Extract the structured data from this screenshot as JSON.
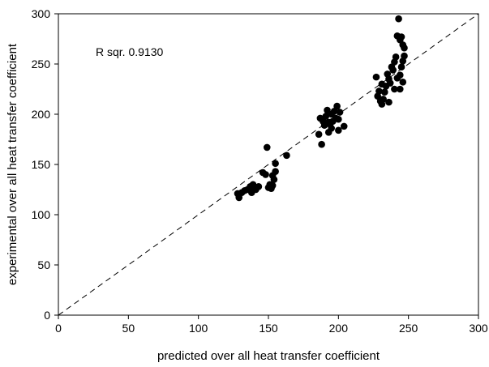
{
  "chart_data": {
    "type": "scatter",
    "xlabel": "predicted over all heat transfer coefficient",
    "ylabel": "experimental over all heat transfer coefficient",
    "annotation": "R sqr. 0.9130",
    "xlim": [
      0,
      300
    ],
    "ylim": [
      0,
      300
    ],
    "xticks": [
      "0",
      "50",
      "100",
      "150",
      "200",
      "250",
      "300"
    ],
    "yticks": [
      "0",
      "50",
      "100",
      "150",
      "200",
      "250",
      "300"
    ],
    "reference_line": "y = x (dashed)",
    "grid": false,
    "marker_color": "#000000",
    "points": [
      [
        128,
        121
      ],
      [
        129,
        117
      ],
      [
        131,
        122
      ],
      [
        133,
        124
      ],
      [
        135,
        125
      ],
      [
        137,
        128
      ],
      [
        138,
        122
      ],
      [
        139,
        130
      ],
      [
        140,
        126
      ],
      [
        141,
        125
      ],
      [
        143,
        128
      ],
      [
        146,
        142
      ],
      [
        148,
        140
      ],
      [
        149,
        167
      ],
      [
        150,
        127
      ],
      [
        151,
        130
      ],
      [
        152,
        126
      ],
      [
        153,
        139
      ],
      [
        153,
        129
      ],
      [
        154,
        135
      ],
      [
        155,
        143
      ],
      [
        155,
        151
      ],
      [
        163,
        159
      ],
      [
        186,
        180
      ],
      [
        187,
        196
      ],
      [
        188,
        170
      ],
      [
        189,
        193
      ],
      [
        190,
        189
      ],
      [
        191,
        198
      ],
      [
        192,
        204
      ],
      [
        193,
        182
      ],
      [
        193,
        192
      ],
      [
        194,
        190
      ],
      [
        195,
        200
      ],
      [
        195,
        186
      ],
      [
        196,
        193
      ],
      [
        197,
        203
      ],
      [
        198,
        196
      ],
      [
        199,
        208
      ],
      [
        200,
        195
      ],
      [
        200,
        184
      ],
      [
        201,
        202
      ],
      [
        204,
        188
      ],
      [
        227,
        237
      ],
      [
        228,
        218
      ],
      [
        229,
        223
      ],
      [
        230,
        213
      ],
      [
        231,
        210
      ],
      [
        231,
        230
      ],
      [
        232,
        215
      ],
      [
        233,
        222
      ],
      [
        234,
        228
      ],
      [
        235,
        240
      ],
      [
        236,
        212
      ],
      [
        236,
        235
      ],
      [
        237,
        231
      ],
      [
        238,
        247
      ],
      [
        239,
        244
      ],
      [
        240,
        252
      ],
      [
        240,
        225
      ],
      [
        241,
        257
      ],
      [
        242,
        236
      ],
      [
        242,
        278
      ],
      [
        243,
        295
      ],
      [
        244,
        239
      ],
      [
        244,
        225
      ],
      [
        245,
        247
      ],
      [
        245,
        277
      ],
      [
        246,
        232
      ],
      [
        246,
        253
      ],
      [
        246,
        269
      ],
      [
        247,
        258
      ],
      [
        247,
        266
      ],
      [
        244,
        274
      ]
    ]
  }
}
